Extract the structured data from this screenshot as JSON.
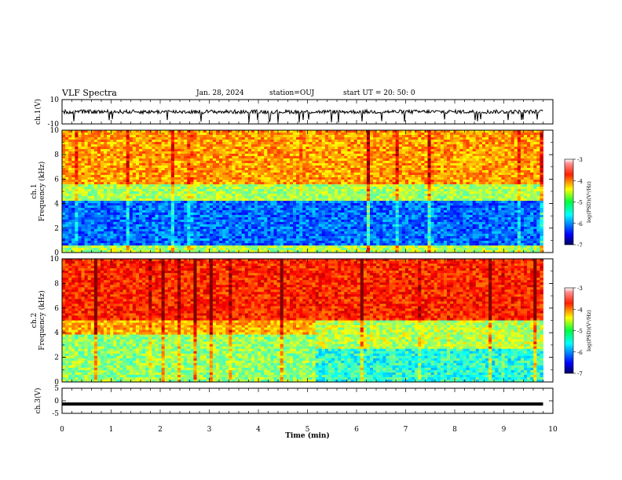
{
  "header": {
    "title": "VLF Spectra",
    "date": "Jan. 28, 2024",
    "station": "station=OUJ",
    "start": "start  UT =   20: 50: 0"
  },
  "chart_data": [
    {
      "type": "line",
      "ylabel": "ch.1(V)",
      "ylim": [
        -10,
        10
      ],
      "yticks": [
        "10",
        "-10"
      ],
      "xlim": [
        0,
        10
      ],
      "description_series": "ch.1 waveform, approximately 0 V with noise"
    },
    {
      "type": "heatmap",
      "ylabel": "ch.1\nFrequency (kHz)",
      "ylabel_line1": "ch.1",
      "ylabel_line2": "Frequency (kHz)",
      "ylim": [
        0,
        10
      ],
      "yticks": [
        "0",
        "2",
        "4",
        "6",
        "8",
        "10"
      ],
      "xlim": [
        0,
        9.8
      ],
      "colorbar": {
        "label": "log(PSD)(V²/Hz)",
        "range": [
          -7,
          -3
        ],
        "ticks": [
          "-3",
          "-4",
          "-5",
          "-6",
          "-7"
        ]
      }
    },
    {
      "type": "heatmap",
      "ylabel_line1": "ch.2",
      "ylabel_line2": "Frequency (kHz)",
      "ylim": [
        0,
        10
      ],
      "yticks": [
        "0",
        "2",
        "4",
        "6",
        "8",
        "10"
      ],
      "xlim": [
        0,
        9.8
      ],
      "colorbar": {
        "label": "log(PSD)(V²/Hz)",
        "range": [
          -7,
          -3
        ],
        "ticks": [
          "-3",
          "-4",
          "-5",
          "-6",
          "-7"
        ]
      }
    },
    {
      "type": "line",
      "ylabel": "ch.3(V)",
      "ylim": [
        -5,
        5
      ],
      "yticks": [
        "5",
        "0",
        "-5"
      ],
      "xlim": [
        0,
        10
      ],
      "xlabel": "Time  (min)",
      "xticks": [
        "0",
        "1",
        "2",
        "3",
        "4",
        "5",
        "6",
        "7",
        "8",
        "9",
        "10"
      ],
      "constant_value": -1.3
    }
  ],
  "colors": {
    "jet": [
      "#000080",
      "#0000ff",
      "#00c8ff",
      "#00ff80",
      "#c8ff00",
      "#ffd000",
      "#ff4000",
      "#d00000"
    ]
  }
}
